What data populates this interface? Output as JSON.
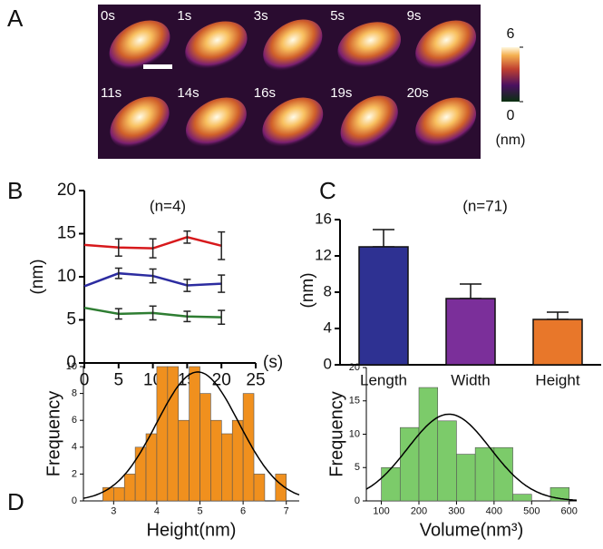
{
  "chart_data": [
    {
      "type": "image-grid",
      "label": "A",
      "frames": [
        "0s",
        "1s",
        "3s",
        "5s",
        "9s",
        "11s",
        "14s",
        "16s",
        "19s",
        "20s"
      ],
      "clim": [
        0,
        6
      ],
      "cticks": [
        0,
        6
      ],
      "colorbar_label": "(nm)"
    },
    {
      "type": "line",
      "label": "B",
      "annotation": "(n=4)",
      "ylabel": "(nm)",
      "xlabel": "(s)",
      "x": [
        0,
        5,
        10,
        15,
        20
      ],
      "series": [
        {
          "color": "#d7191c",
          "values": [
            13.7,
            13.4,
            13.3,
            14.6,
            13.6
          ],
          "errors": [
            null,
            1.0,
            1.1,
            0.7,
            1.6
          ]
        },
        {
          "color": "#2c2ca0",
          "values": [
            8.9,
            10.4,
            10.1,
            9.0,
            9.2
          ],
          "errors": [
            null,
            0.6,
            0.8,
            0.7,
            1.0
          ]
        },
        {
          "color": "#2e7d32",
          "values": [
            6.4,
            5.7,
            5.8,
            5.4,
            5.3
          ],
          "errors": [
            null,
            0.6,
            0.8,
            0.6,
            0.8
          ]
        }
      ],
      "xlim": [
        0,
        25
      ],
      "xticks": [
        0,
        5,
        10,
        15,
        20,
        25
      ],
      "ylim": [
        0,
        20
      ],
      "yticks": [
        0,
        5,
        10,
        15,
        20
      ]
    },
    {
      "type": "bar",
      "label": "C",
      "annotation": "(n=71)",
      "ylabel": "(nm)",
      "categories": [
        "Length",
        "Width",
        "Height"
      ],
      "values": [
        13.0,
        7.3,
        5.0
      ],
      "errors": [
        1.9,
        1.6,
        0.8
      ],
      "colors": [
        "#2e3192",
        "#7b2f9a",
        "#e8772a"
      ],
      "ylim": [
        0,
        16
      ],
      "yticks": [
        0,
        4,
        8,
        12,
        16
      ]
    },
    {
      "type": "histogram",
      "label": "D",
      "xlabel": "Height(nm)",
      "ylabel": "Frequency",
      "color": "#f0901e",
      "bins": [
        2.75,
        3,
        3.25,
        3.5,
        3.75,
        4,
        4.25,
        4.5,
        4.75,
        5,
        5.25,
        5.5,
        5.75,
        6,
        6.25,
        6.5,
        6.75,
        7
      ],
      "counts": [
        1,
        1,
        2,
        4,
        5,
        10,
        10,
        6,
        10,
        8,
        6,
        5,
        6,
        8,
        2,
        0,
        2
      ],
      "fit": {
        "mean": 4.95,
        "sd": 0.95,
        "peak": 9.6
      },
      "xlim": [
        2.3,
        7.3
      ],
      "xticks": [
        3,
        4,
        5,
        6,
        7
      ],
      "ylim": [
        0,
        10
      ],
      "yticks": [
        0,
        2,
        4,
        6,
        8,
        10
      ]
    },
    {
      "type": "histogram",
      "xlabel": "Volume(nm³)",
      "ylabel": "Frequency",
      "color": "#7ccb6a",
      "bins": [
        100,
        150,
        200,
        250,
        300,
        350,
        400,
        450,
        500,
        550,
        600
      ],
      "counts": [
        5,
        11,
        17,
        12,
        7,
        8,
        8,
        1,
        0,
        2
      ],
      "fit": {
        "mean": 280,
        "sd": 110,
        "peak": 13
      },
      "xlim": [
        60,
        620
      ],
      "xticks": [
        100,
        200,
        300,
        400,
        500,
        600
      ],
      "ylim": [
        0,
        20
      ],
      "yticks": [
        0,
        5,
        10,
        15,
        20
      ]
    }
  ]
}
